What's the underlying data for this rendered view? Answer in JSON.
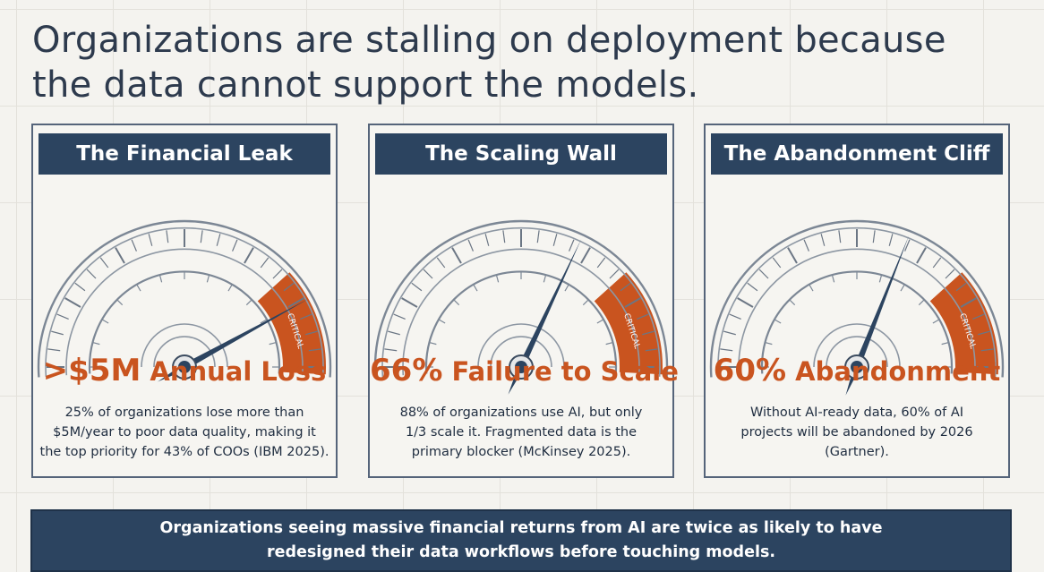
{
  "headline": "Organizations are stalling on deployment because the data cannot support the models.",
  "gauge_label": "CRITICAL",
  "colors": {
    "navy": "#2c4460",
    "accent": "#c9541f",
    "text": "#2d3a4d"
  },
  "cards": [
    {
      "title": "The Financial Leak",
      "stat_main": ">$5M",
      "stat_rest": " Annual Loss",
      "needle_level": 0.84,
      "lines": [
        "25% of organizations lose more than",
        "$5M/year to poor data quality, making it",
        "the top priority for 43% of COOs (IBM 2025)."
      ]
    },
    {
      "title": "The Scaling Wall",
      "stat_main": "66%",
      "stat_rest": " Failure to Scale",
      "needle_level": 0.64,
      "lines": [
        "88% of organizations use AI, but only",
        "1/3 scale it. Fragmented data is the",
        "primary blocker (McKinsey 2025)."
      ]
    },
    {
      "title": "The Abandonment Cliff",
      "stat_main": "60%",
      "stat_rest": " Abandonment",
      "needle_level": 0.62,
      "lines": [
        "Without AI-ready data, 60% of AI",
        "projects will be abandoned by 2026",
        "(Gartner)."
      ]
    }
  ],
  "footer": {
    "lines": [
      "Organizations seeing massive financial returns from AI are twice as likely to have",
      "redesigned their data workflows before touching models."
    ]
  }
}
